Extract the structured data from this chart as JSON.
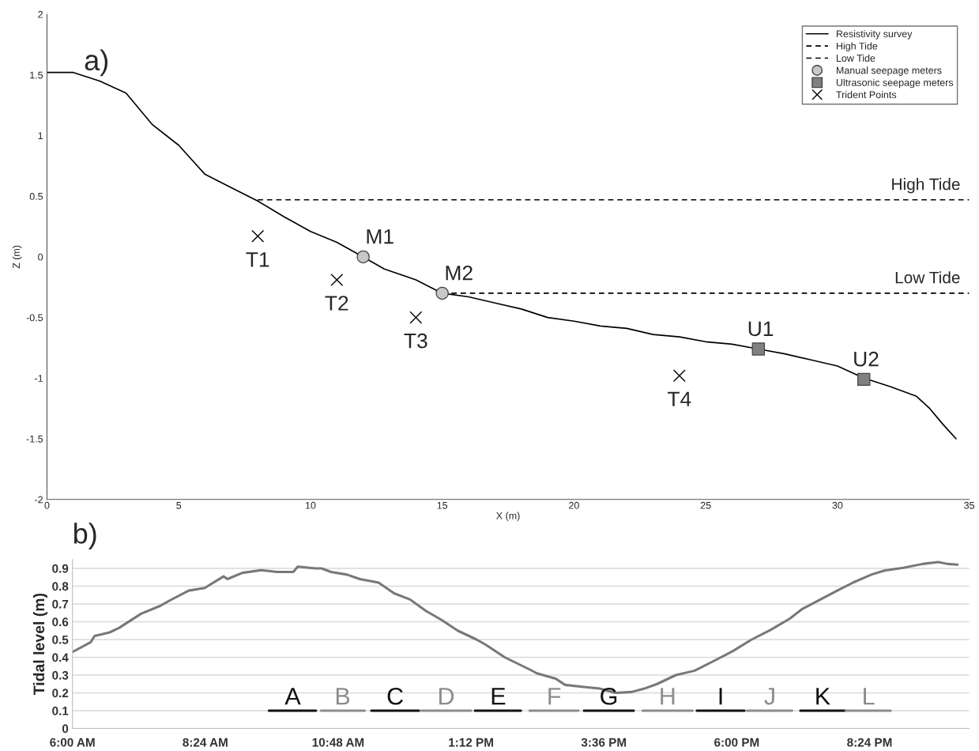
{
  "chart_data": [
    {
      "type": "line",
      "xlabel": "X (m)",
      "ylabel": "Z (m)",
      "xlim": [
        0,
        35
      ],
      "ylim": [
        -2,
        2
      ],
      "xticks": [
        0,
        5,
        10,
        15,
        20,
        25,
        30,
        35
      ],
      "yticks": [
        -2,
        -1.5,
        -1,
        -0.5,
        0,
        0.5,
        1,
        1.5,
        2
      ],
      "grid": false,
      "legend": "top right",
      "series": [
        {
          "name": "Resistivity survey",
          "line_style": "solid",
          "color": "#000000",
          "x": [
            0,
            1,
            2,
            3,
            4,
            5,
            6,
            7,
            8,
            9,
            10,
            11,
            12,
            12.8,
            14,
            15,
            16,
            17,
            18,
            19,
            20,
            21,
            22,
            23,
            24,
            25,
            26,
            27,
            28,
            29,
            30,
            31,
            32,
            33,
            33.5,
            34,
            34.5
          ],
          "values": [
            1.52,
            1.52,
            1.45,
            1.35,
            1.09,
            0.92,
            0.68,
            0.57,
            0.46,
            0.33,
            0.21,
            0.12,
            0.0,
            -0.1,
            -0.19,
            -0.3,
            -0.33,
            -0.38,
            -0.43,
            -0.5,
            -0.53,
            -0.57,
            -0.59,
            -0.64,
            -0.66,
            -0.7,
            -0.72,
            -0.76,
            -0.8,
            -0.85,
            -0.9,
            -1.0,
            -1.07,
            -1.15,
            -1.25,
            -1.38,
            -1.5
          ]
        },
        {
          "name": "High Tide",
          "line_style": "dashed",
          "color": "#000000",
          "x": [
            8,
            35
          ],
          "values": [
            0.47,
            0.47
          ]
        },
        {
          "name": "Low Tide",
          "line_style": "dashed",
          "color": "#000000",
          "x": [
            15,
            35
          ],
          "values": [
            -0.3,
            -0.3
          ]
        },
        {
          "name": "Manual seepage meters",
          "type": "scatter",
          "marker": "circle",
          "color": "#c8c8c8",
          "x": [
            12,
            15
          ],
          "values": [
            0,
            -0.3
          ]
        },
        {
          "name": "Ultrasonic seepage meters",
          "type": "scatter",
          "marker": "square",
          "color": "#808080",
          "x": [
            27,
            31
          ],
          "values": [
            -0.76,
            -1.01
          ]
        },
        {
          "name": "Trident Points",
          "type": "scatter",
          "marker": "cross",
          "color": "#000000",
          "x": [
            8,
            11,
            14,
            24
          ],
          "values": [
            0.17,
            -0.19,
            -0.5,
            -0.98
          ]
        }
      ],
      "annotations": [
        "a)",
        {
          "text": "High Tide",
          "x": 35,
          "y": 0.47
        },
        {
          "text": "Low Tide",
          "x": 35,
          "y": -0.3
        },
        {
          "text": "M1",
          "x": 12,
          "y": 0
        },
        {
          "text": "M2",
          "x": 15,
          "y": -0.3
        },
        {
          "text": "U1",
          "x": 27,
          "y": -0.76
        },
        {
          "text": "U2",
          "x": 31,
          "y": -1.01
        },
        {
          "text": "T1",
          "x": 8,
          "y": 0.17
        },
        {
          "text": "T2",
          "x": 11,
          "y": -0.19
        },
        {
          "text": "T3",
          "x": 14,
          "y": -0.5
        },
        {
          "text": "T4",
          "x": 24,
          "y": -0.98
        }
      ]
    },
    {
      "type": "line",
      "ylabel": "Tidal level (m)",
      "xlim": [
        6,
        22.2
      ],
      "ylim": [
        0,
        0.95
      ],
      "xticks": [
        {
          "value": 6,
          "label": "6:00 AM"
        },
        {
          "value": 8.4,
          "label": "8:24 AM"
        },
        {
          "value": 10.8,
          "label": "10:48 AM"
        },
        {
          "value": 13.2,
          "label": "1:12 PM"
        },
        {
          "value": 15.6,
          "label": "3:36 PM"
        },
        {
          "value": 18,
          "label": "6:00 PM"
        },
        {
          "value": 20.4,
          "label": "8:24 PM"
        }
      ],
      "yticks": [
        0,
        0.1,
        0.2,
        0.3,
        0.4,
        0.5,
        0.6,
        0.7,
        0.8,
        0.9
      ],
      "grid": "y",
      "series": [
        {
          "color": "#787878",
          "x": [
            6.0,
            6.33,
            6.4,
            6.67,
            6.84,
            7.24,
            7.59,
            7.76,
            8.1,
            8.39,
            8.73,
            8.8,
            9.07,
            9.41,
            9.7,
            9.99,
            10.07,
            10.39,
            10.5,
            10.67,
            10.96,
            11.19,
            11.53,
            11.81,
            12.1,
            12.39,
            12.67,
            12.96,
            13.3,
            13.47,
            13.81,
            14.27,
            14.39,
            14.73,
            14.9,
            15.24,
            15.53,
            15.81,
            16.1,
            16.33,
            16.56,
            16.9,
            17.24,
            17.59,
            17.93,
            18.27,
            18.61,
            18.96,
            19.19,
            19.53,
            19.81,
            20.1,
            20.44,
            20.67,
            21.01,
            21.36,
            21.64,
            21.81,
            21.99
          ],
          "values": [
            0.43,
            0.485,
            0.52,
            0.54,
            0.565,
            0.645,
            0.69,
            0.72,
            0.775,
            0.79,
            0.855,
            0.84,
            0.875,
            0.89,
            0.88,
            0.88,
            0.91,
            0.9,
            0.9,
            0.88,
            0.865,
            0.84,
            0.82,
            0.76,
            0.725,
            0.66,
            0.61,
            0.55,
            0.5,
            0.47,
            0.4,
            0.33,
            0.31,
            0.28,
            0.245,
            0.233,
            0.224,
            0.2,
            0.205,
            0.224,
            0.25,
            0.3,
            0.325,
            0.38,
            0.435,
            0.5,
            0.554,
            0.618,
            0.673,
            0.728,
            0.774,
            0.82,
            0.866,
            0.888,
            0.903,
            0.925,
            0.936,
            0.925,
            0.921
          ]
        },
        {
          "color": "#111111",
          "x": [
            9.55,
            10.4
          ],
          "values": [
            0.1,
            0.1
          ]
        },
        {
          "color": "#8c8c8c",
          "x": [
            10.49,
            11.28
          ],
          "values": [
            0.1,
            0.1
          ]
        },
        {
          "color": "#111111",
          "x": [
            11.4,
            12.26
          ],
          "values": [
            0.1,
            0.1
          ]
        },
        {
          "color": "#8c8c8c",
          "x": [
            12.3,
            13.2
          ],
          "values": [
            0.1,
            0.1
          ]
        },
        {
          "color": "#111111",
          "x": [
            13.27,
            14.1
          ],
          "values": [
            0.1,
            0.1
          ]
        },
        {
          "color": "#8c8c8c",
          "x": [
            14.26,
            15.14
          ],
          "values": [
            0.1,
            0.1
          ]
        },
        {
          "color": "#111111",
          "x": [
            15.24,
            16.14
          ],
          "values": [
            0.1,
            0.1
          ]
        },
        {
          "color": "#8c8c8c",
          "x": [
            16.3,
            17.2
          ],
          "values": [
            0.1,
            0.1
          ]
        },
        {
          "color": "#111111",
          "x": [
            17.28,
            18.14
          ],
          "values": [
            0.1,
            0.1
          ]
        },
        {
          "color": "#8c8c8c",
          "x": [
            18.19,
            19.0
          ],
          "values": [
            0.1,
            0.1
          ]
        },
        {
          "color": "#111111",
          "x": [
            19.15,
            19.96
          ],
          "values": [
            0.1,
            0.1
          ]
        },
        {
          "color": "#8c8c8c",
          "x": [
            19.97,
            20.78
          ],
          "values": [
            0.1,
            0.1
          ]
        }
      ],
      "annotations": [
        "b)",
        {
          "text": "A",
          "x": 9.98,
          "y": 0.1
        },
        {
          "text": "B",
          "x": 10.88,
          "y": 0.1
        },
        {
          "text": "C",
          "x": 11.83,
          "y": 0.1
        },
        {
          "text": "D",
          "x": 12.75,
          "y": 0.1
        },
        {
          "text": "E",
          "x": 13.69,
          "y": 0.1
        },
        {
          "text": "F",
          "x": 14.7,
          "y": 0.1
        },
        {
          "text": "G",
          "x": 15.69,
          "y": 0.1
        },
        {
          "text": "H",
          "x": 16.75,
          "y": 0.1
        },
        {
          "text": "I",
          "x": 17.71,
          "y": 0.1
        },
        {
          "text": "J",
          "x": 18.6,
          "y": 0.1
        },
        {
          "text": "K",
          "x": 19.55,
          "y": 0.1
        },
        {
          "text": "L",
          "x": 20.38,
          "y": 0.1
        }
      ]
    }
  ]
}
